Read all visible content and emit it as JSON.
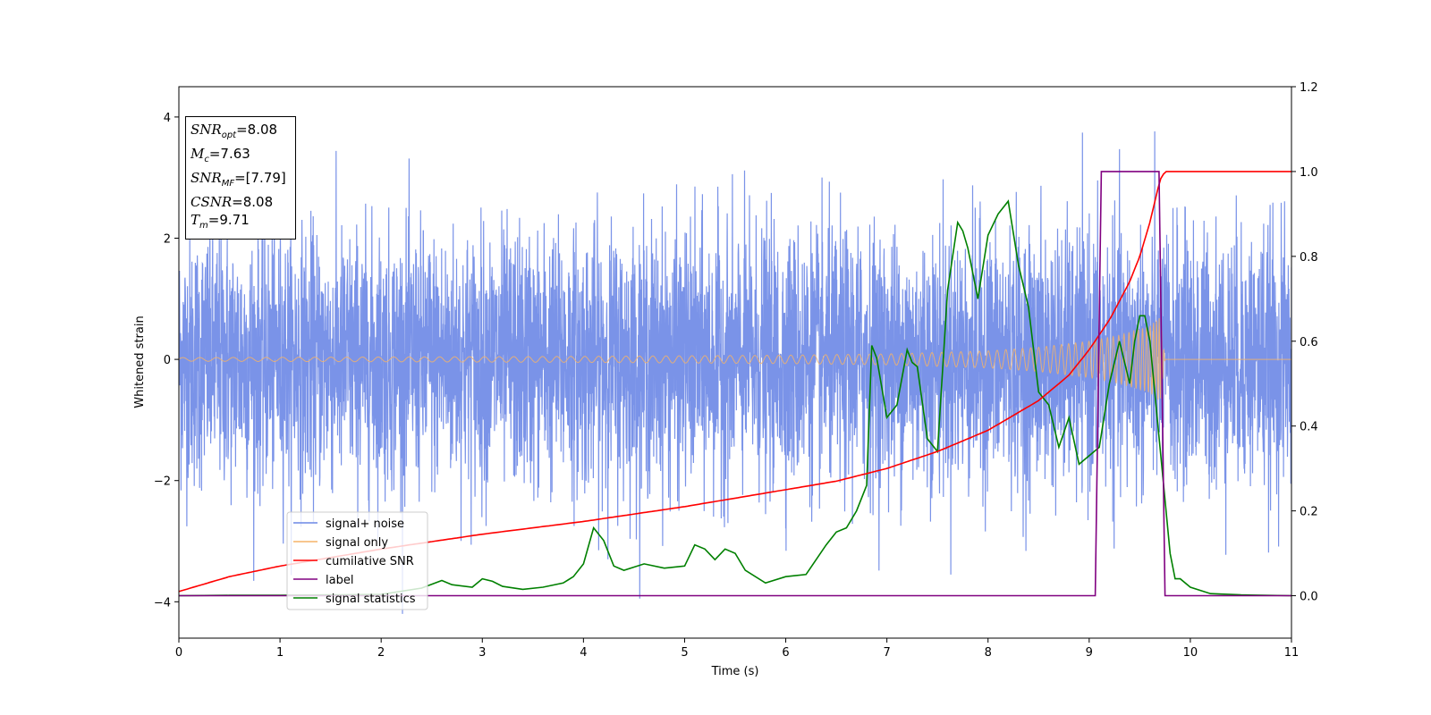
{
  "chart_data": {
    "type": "line",
    "xlabel": "Time (s)",
    "ylabel": "Whitened strain",
    "xlim": [
      0,
      11
    ],
    "ylim_left": [
      -4.6,
      4.5
    ],
    "ylim_right": [
      -0.1,
      1.2
    ],
    "x_ticks": [
      "0",
      "1",
      "2",
      "3",
      "4",
      "5",
      "6",
      "7",
      "8",
      "9",
      "10",
      "11"
    ],
    "y_ticks_left": [
      "−4",
      "−2",
      "0",
      "2",
      "4"
    ],
    "y_ticks_right": [
      "0.0",
      "0.2",
      "0.4",
      "0.6",
      "0.8",
      "1.0",
      "1.2"
    ],
    "legend_position": "lower-left",
    "annotations": {
      "snr_opt": {
        "sym": "SNR",
        "sub": "opt",
        "value": "=8.08"
      },
      "mc": {
        "sym": "M",
        "sub": "c",
        "value": "=7.63"
      },
      "snr_mf": {
        "sym": "SNR",
        "sub": "MF",
        "value": "=[7.79]"
      },
      "csnr": {
        "sym": "CSNR",
        "sub": "",
        "value": "=8.08"
      },
      "tm": {
        "sym": "T",
        "sub": "m",
        "value": "=9.71"
      }
    },
    "series": [
      {
        "name": "signal+ noise",
        "axis": "left",
        "color": "#6b87e6",
        "description_values": {
          "approx_std": 1.0,
          "range": [
            -4.2,
            4.1
          ]
        }
      },
      {
        "name": "signal only",
        "axis": "left",
        "color": "#f5b368",
        "envelope": {
          "x": [
            0,
            2,
            4,
            6,
            7,
            8,
            8.5,
            9,
            9.3,
            9.6,
            9.7,
            9.75,
            11
          ],
          "amp": [
            0.03,
            0.04,
            0.05,
            0.07,
            0.09,
            0.14,
            0.2,
            0.3,
            0.4,
            0.55,
            0.7,
            0.0,
            0.0
          ]
        }
      },
      {
        "name": "cumilative SNR",
        "axis": "right",
        "color": "#ff0000",
        "x": [
          0,
          0.5,
          1,
          2,
          3,
          4,
          5,
          6,
          6.5,
          7,
          7.5,
          8,
          8.5,
          8.8,
          9,
          9.2,
          9.4,
          9.5,
          9.6,
          9.7,
          9.75,
          11
        ],
        "y": [
          0.01,
          0.045,
          0.07,
          0.11,
          0.145,
          0.175,
          0.21,
          0.25,
          0.27,
          0.3,
          0.34,
          0.39,
          0.46,
          0.52,
          0.58,
          0.65,
          0.74,
          0.8,
          0.88,
          0.98,
          1.0,
          1.0
        ]
      },
      {
        "name": "label",
        "axis": "right",
        "color": "#800080",
        "x": [
          0,
          9.06,
          9.12,
          9.69,
          9.75,
          11
        ],
        "y": [
          0,
          0,
          1,
          1,
          0,
          0
        ]
      },
      {
        "name": "signal statistics",
        "axis": "right",
        "color": "#008000",
        "x": [
          0,
          0.5,
          1,
          1.5,
          2,
          2.4,
          2.6,
          2.7,
          2.9,
          3,
          3.1,
          3.2,
          3.4,
          3.6,
          3.8,
          3.9,
          4.0,
          4.1,
          4.2,
          4.3,
          4.4,
          4.6,
          4.8,
          5.0,
          5.1,
          5.2,
          5.3,
          5.4,
          5.5,
          5.6,
          5.8,
          6.0,
          6.2,
          6.4,
          6.5,
          6.6,
          6.7,
          6.8,
          6.85,
          6.9,
          6.95,
          7.0,
          7.1,
          7.2,
          7.25,
          7.3,
          7.4,
          7.5,
          7.6,
          7.7,
          7.75,
          7.8,
          7.9,
          8.0,
          8.1,
          8.2,
          8.3,
          8.4,
          8.5,
          8.6,
          8.7,
          8.8,
          8.9,
          9.0,
          9.1,
          9.2,
          9.3,
          9.4,
          9.45,
          9.5,
          9.55,
          9.6,
          9.7,
          9.8,
          9.85,
          9.9,
          10.0,
          10.2,
          10.5,
          11
        ],
        "y": [
          0.0,
          0.001,
          0.001,
          0.002,
          0.003,
          0.018,
          0.036,
          0.026,
          0.02,
          0.04,
          0.034,
          0.022,
          0.015,
          0.02,
          0.03,
          0.045,
          0.075,
          0.16,
          0.13,
          0.07,
          0.06,
          0.075,
          0.065,
          0.07,
          0.12,
          0.11,
          0.085,
          0.11,
          0.1,
          0.06,
          0.03,
          0.045,
          0.05,
          0.12,
          0.15,
          0.16,
          0.2,
          0.26,
          0.59,
          0.56,
          0.49,
          0.42,
          0.45,
          0.58,
          0.55,
          0.54,
          0.37,
          0.34,
          0.72,
          0.88,
          0.86,
          0.82,
          0.7,
          0.85,
          0.9,
          0.93,
          0.78,
          0.68,
          0.48,
          0.45,
          0.35,
          0.42,
          0.31,
          0.33,
          0.35,
          0.5,
          0.6,
          0.5,
          0.6,
          0.66,
          0.66,
          0.6,
          0.35,
          0.1,
          0.04,
          0.04,
          0.02,
          0.005,
          0.002,
          0.0
        ]
      }
    ]
  }
}
